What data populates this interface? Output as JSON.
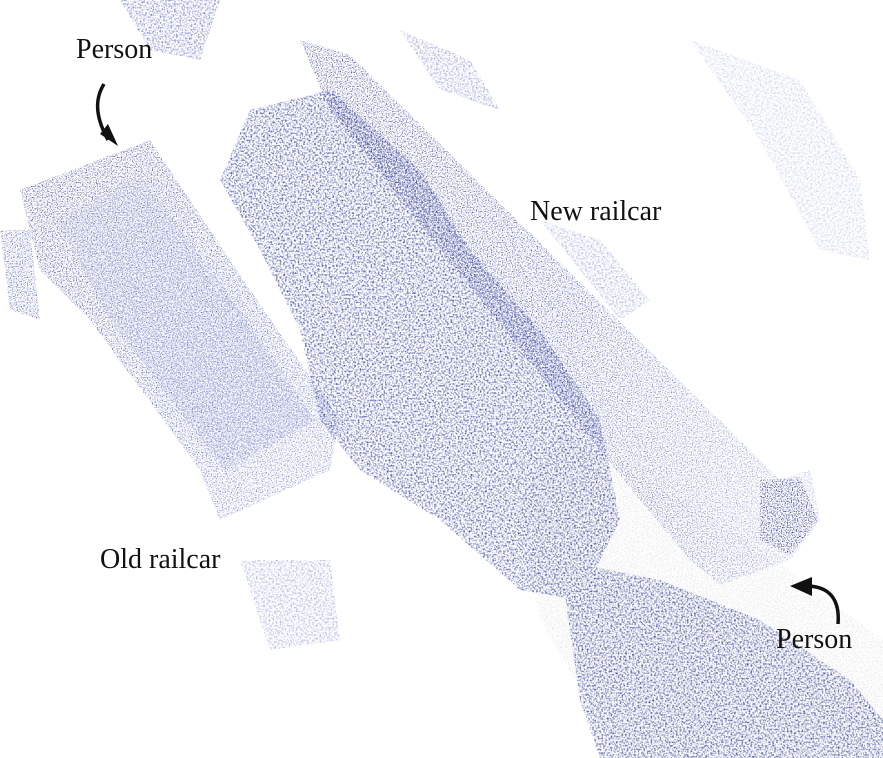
{
  "labels": {
    "person_top": "Person",
    "new_railcar": "New railcar",
    "old_railcar": "Old railcar",
    "person_bottom": "Person"
  },
  "colors": {
    "background": "#ffffff",
    "point_dark": "#1a237e",
    "point_mid": "#3949ab",
    "point_light": "#9fa8da",
    "point_ground": "#e0e0e0",
    "label": "#111111"
  },
  "icons": {
    "arrow_top": "curved-arrow-down-icon",
    "arrow_bottom": "curved-arrow-left-icon"
  }
}
